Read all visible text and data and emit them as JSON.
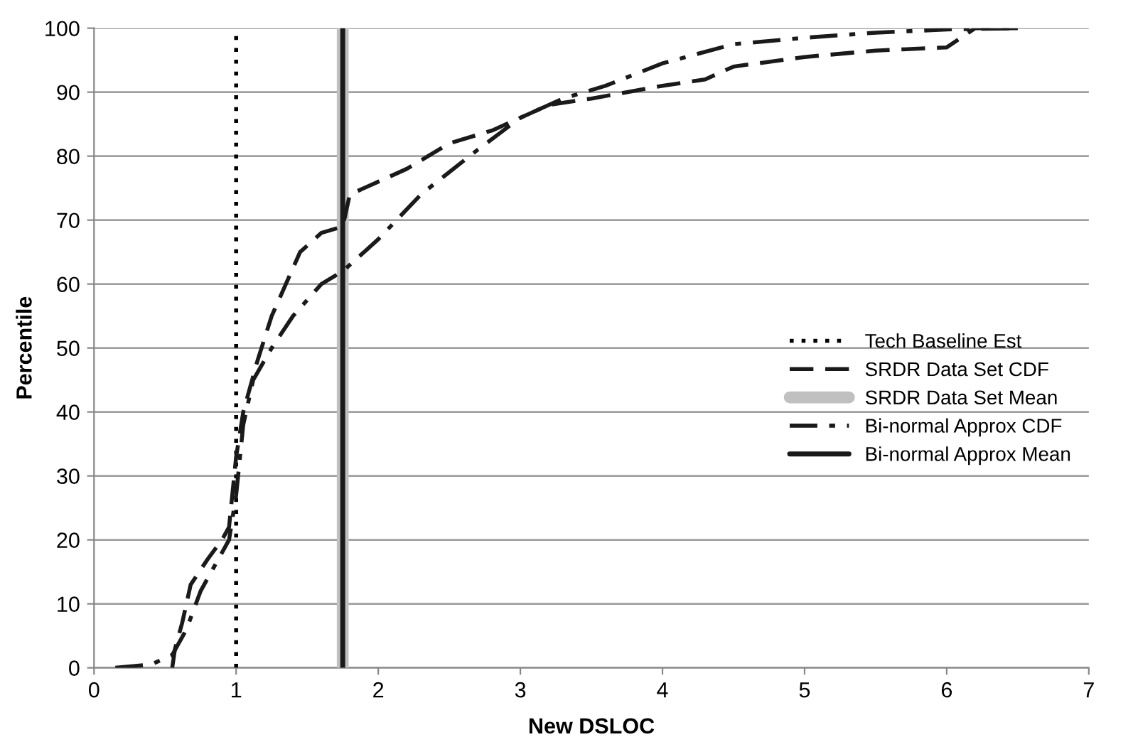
{
  "chart_data": {
    "type": "line",
    "xlabel": "New DSLOC",
    "ylabel": "Percentile",
    "xlim": [
      0,
      7
    ],
    "xticks": [
      0,
      1,
      2,
      3,
      4,
      5,
      6,
      7
    ],
    "ylim": [
      0,
      100
    ],
    "yticks": [
      0,
      10,
      20,
      30,
      40,
      50,
      60,
      70,
      80,
      90,
      100
    ],
    "grid": "y",
    "legend": "right",
    "series": [
      {
        "name": "Tech Baseline Est",
        "color": "#000000",
        "line_style": "dotted",
        "x": [
          1,
          1
        ],
        "values": [
          0,
          100
        ]
      },
      {
        "name": "SRDR Data Set CDF",
        "color": "#1a1a1a",
        "line_style": "dashed",
        "x": [
          0.55,
          0.57,
          0.62,
          0.68,
          0.8,
          0.9,
          0.95,
          1.0,
          1.05,
          1.15,
          1.25,
          1.35,
          1.45,
          1.6,
          1.75,
          1.8,
          2.0,
          2.2,
          2.5,
          2.8,
          3.0,
          3.2,
          3.5,
          4.0,
          4.3,
          4.5,
          5.0,
          5.5,
          6.0,
          6.2,
          6.5
        ],
        "values": [
          0,
          3,
          7,
          13,
          17,
          20,
          22,
          33,
          40,
          48,
          55,
          60,
          65,
          68,
          69,
          74,
          76,
          78,
          82,
          84,
          86,
          88,
          89,
          91,
          92,
          94,
          95.5,
          96.5,
          97,
          100,
          100
        ]
      },
      {
        "name": "SRDR Data Set Mean",
        "color": "#c0c0c0",
        "type": "line",
        "line_style": "solid",
        "x": [
          1.75,
          1.75
        ],
        "values": [
          0,
          100
        ]
      },
      {
        "name": "Bi-normal Approx CDF",
        "color": "#1a1a1a",
        "line_style": "dashdot",
        "x": [
          0.15,
          0.4,
          0.55,
          0.65,
          0.75,
          0.85,
          0.95,
          1.0,
          1.05,
          1.12,
          1.25,
          1.4,
          1.6,
          1.75,
          2.0,
          2.3,
          2.7,
          3.0,
          3.3,
          3.6,
          4.0,
          4.5,
          5.0,
          5.5,
          6.0,
          6.5
        ],
        "values": [
          0,
          0.5,
          2,
          6,
          12,
          16,
          20,
          27,
          38,
          45,
          50,
          55,
          60,
          62,
          67,
          74,
          81,
          86,
          89,
          91,
          94.5,
          97.5,
          98.5,
          99.3,
          99.8,
          100
        ]
      },
      {
        "name": "Bi-normal Approx Mean",
        "color": "#1a1a1a",
        "type": "line",
        "line_style": "solid",
        "x": [
          1.75,
          1.75
        ],
        "values": [
          0,
          100
        ]
      }
    ]
  }
}
